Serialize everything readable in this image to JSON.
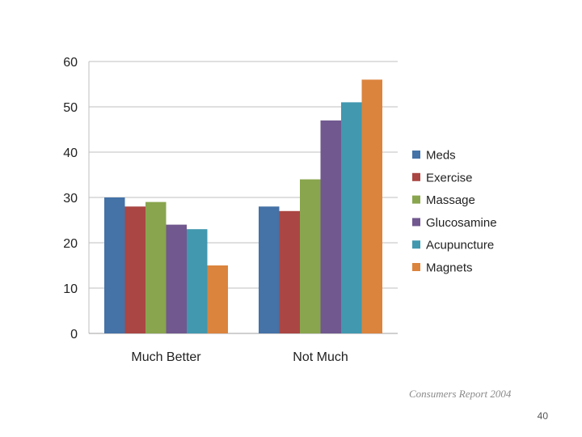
{
  "chart_data": {
    "type": "bar",
    "categories": [
      "Much Better",
      "Not Much"
    ],
    "series": [
      {
        "name": "Meds",
        "values": [
          30,
          28
        ],
        "color": "#4572A7"
      },
      {
        "name": "Exercise",
        "values": [
          28,
          27
        ],
        "color": "#AA4643"
      },
      {
        "name": "Massage",
        "values": [
          29,
          34
        ],
        "color": "#89A54E"
      },
      {
        "name": "Glucosamine",
        "values": [
          24,
          47
        ],
        "color": "#71588F"
      },
      {
        "name": "Acupuncture",
        "values": [
          23,
          51
        ],
        "color": "#4198AF"
      },
      {
        "name": "Magnets",
        "values": [
          15,
          56
        ],
        "color": "#DB843D"
      }
    ],
    "yticks": [
      0,
      10,
      20,
      30,
      40,
      50,
      60
    ],
    "ylim": [
      0,
      60
    ],
    "grid": true,
    "legend": "right"
  },
  "footer": {
    "source": "Consumers Report 2004",
    "page_number": "40"
  }
}
